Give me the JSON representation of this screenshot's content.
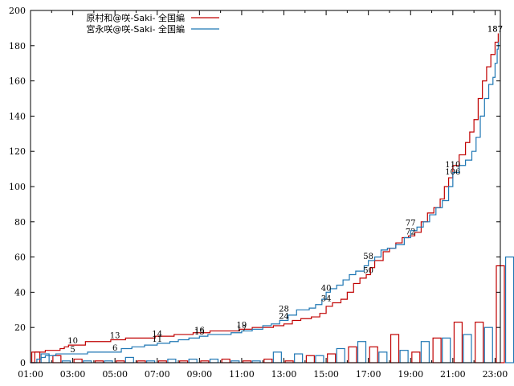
{
  "chart_data": {
    "type": "line+bar",
    "xlim_hours": [
      1,
      23.25
    ],
    "ylim": [
      0,
      200
    ],
    "x_ticks": [
      "01:00",
      "03:00",
      "05:00",
      "07:00",
      "09:00",
      "11:00",
      "13:00",
      "15:00",
      "17:00",
      "19:00",
      "21:00",
      "23:00"
    ],
    "y_ticks": [
      "0",
      "20",
      "40",
      "60",
      "80",
      "100",
      "120",
      "140",
      "160",
      "180",
      "200"
    ],
    "legend_position": "top-left",
    "series": [
      {
        "name": "原村和@咲-Saki- 全国編",
        "color": "#c00000",
        "cumulative_points": [
          [
            1.0,
            0
          ],
          [
            1.2,
            6
          ],
          [
            1.6,
            6
          ],
          [
            1.7,
            7
          ],
          [
            2.4,
            8
          ],
          [
            2.6,
            9
          ],
          [
            2.8,
            10
          ],
          [
            3.5,
            10
          ],
          [
            3.6,
            12
          ],
          [
            4.5,
            12
          ],
          [
            4.8,
            13
          ],
          [
            5.5,
            14
          ],
          [
            6.8,
            14
          ],
          [
            6.9,
            15
          ],
          [
            7.6,
            15
          ],
          [
            7.8,
            16
          ],
          [
            8.5,
            16
          ],
          [
            8.7,
            17
          ],
          [
            9.3,
            17
          ],
          [
            9.5,
            18
          ],
          [
            10.5,
            18
          ],
          [
            10.9,
            19
          ],
          [
            11.4,
            19
          ],
          [
            11.5,
            20
          ],
          [
            12.3,
            20
          ],
          [
            12.5,
            21
          ],
          [
            13.0,
            22
          ],
          [
            13.4,
            24
          ],
          [
            13.8,
            25
          ],
          [
            14.3,
            26
          ],
          [
            14.7,
            28
          ],
          [
            15.0,
            32
          ],
          [
            15.3,
            34
          ],
          [
            15.7,
            36
          ],
          [
            16.0,
            40
          ],
          [
            16.3,
            45
          ],
          [
            16.6,
            48
          ],
          [
            16.9,
            50
          ],
          [
            17.1,
            54
          ],
          [
            17.3,
            58
          ],
          [
            17.7,
            63
          ],
          [
            18.0,
            65
          ],
          [
            18.3,
            68
          ],
          [
            18.6,
            71
          ],
          [
            18.9,
            72
          ],
          [
            19.2,
            74
          ],
          [
            19.5,
            80
          ],
          [
            19.8,
            85
          ],
          [
            20.1,
            88
          ],
          [
            20.4,
            93
          ],
          [
            20.6,
            100
          ],
          [
            20.8,
            105
          ],
          [
            21.0,
            112
          ],
          [
            21.3,
            118
          ],
          [
            21.6,
            125
          ],
          [
            21.8,
            131
          ],
          [
            22.0,
            138
          ],
          [
            22.2,
            150
          ],
          [
            22.4,
            160
          ],
          [
            22.6,
            168
          ],
          [
            22.8,
            175
          ],
          [
            23.0,
            182
          ],
          [
            23.15,
            187
          ]
        ],
        "hourly_counts": [
          6,
          4,
          2,
          1,
          1,
          1,
          1,
          1,
          1,
          2,
          1,
          2,
          1,
          4,
          5,
          9,
          9,
          16,
          6,
          14,
          23,
          23,
          55
        ]
      },
      {
        "name": "宮永咲@咲-Saki- 全国編",
        "color": "#1f77b4",
        "cumulative_points": [
          [
            1.0,
            0
          ],
          [
            1.3,
            2
          ],
          [
            1.5,
            3
          ],
          [
            1.7,
            4
          ],
          [
            2.2,
            5
          ],
          [
            3.5,
            5
          ],
          [
            3.7,
            6
          ],
          [
            4.5,
            6
          ],
          [
            5.0,
            6
          ],
          [
            5.3,
            8
          ],
          [
            5.8,
            9
          ],
          [
            6.4,
            10
          ],
          [
            7.0,
            11
          ],
          [
            7.6,
            12
          ],
          [
            8.0,
            13
          ],
          [
            8.5,
            14
          ],
          [
            9.0,
            15
          ],
          [
            9.4,
            16
          ],
          [
            10.0,
            16
          ],
          [
            10.5,
            17
          ],
          [
            11.0,
            18
          ],
          [
            11.5,
            19
          ],
          [
            12.0,
            21
          ],
          [
            12.4,
            22
          ],
          [
            12.8,
            24
          ],
          [
            13.2,
            27
          ],
          [
            13.6,
            30
          ],
          [
            14.2,
            31
          ],
          [
            14.5,
            33
          ],
          [
            14.8,
            36
          ],
          [
            15.0,
            40
          ],
          [
            15.2,
            42
          ],
          [
            15.5,
            44
          ],
          [
            15.8,
            47
          ],
          [
            16.1,
            50
          ],
          [
            16.4,
            52
          ],
          [
            16.8,
            55
          ],
          [
            17.0,
            58
          ],
          [
            17.3,
            60
          ],
          [
            17.6,
            64
          ],
          [
            17.9,
            65
          ],
          [
            18.3,
            67
          ],
          [
            18.7,
            71
          ],
          [
            19.0,
            75
          ],
          [
            19.3,
            77
          ],
          [
            19.6,
            80
          ],
          [
            19.9,
            84
          ],
          [
            20.2,
            88
          ],
          [
            20.5,
            92
          ],
          [
            20.8,
            100
          ],
          [
            21.0,
            108
          ],
          [
            21.3,
            112
          ],
          [
            21.6,
            115
          ],
          [
            21.9,
            120
          ],
          [
            22.1,
            128
          ],
          [
            22.3,
            140
          ],
          [
            22.5,
            150
          ],
          [
            22.7,
            158
          ],
          [
            22.9,
            162
          ],
          [
            23.0,
            170
          ],
          [
            23.1,
            178
          ],
          [
            23.15,
            182
          ]
        ],
        "hourly_counts": [
          5,
          1,
          1,
          1,
          3,
          1,
          2,
          2,
          2,
          1,
          1,
          6,
          5,
          4,
          8,
          12,
          6,
          7,
          12,
          14,
          16,
          20,
          60
        ]
      }
    ],
    "annotations": [
      {
        "x": 3.0,
        "y": 10,
        "text": "10"
      },
      {
        "x": 3.0,
        "y": 5,
        "text": "5"
      },
      {
        "x": 5.0,
        "y": 13,
        "text": "13"
      },
      {
        "x": 5.0,
        "y": 6,
        "text": "6"
      },
      {
        "x": 7.0,
        "y": 14,
        "text": "14"
      },
      {
        "x": 7.0,
        "y": 11,
        "text": "11"
      },
      {
        "x": 9.0,
        "y": 16,
        "text": "16"
      },
      {
        "x": 9.0,
        "y": 15,
        "text": "15"
      },
      {
        "x": 11.0,
        "y": 19,
        "text": "19"
      },
      {
        "x": 11.0,
        "y": 17,
        "text": "17"
      },
      {
        "x": 13.0,
        "y": 28,
        "text": "28"
      },
      {
        "x": 13.0,
        "y": 24,
        "text": "24"
      },
      {
        "x": 15.0,
        "y": 40,
        "text": "40"
      },
      {
        "x": 15.0,
        "y": 34,
        "text": "34"
      },
      {
        "x": 17.0,
        "y": 58,
        "text": "58"
      },
      {
        "x": 17.0,
        "y": 50,
        "text": "50"
      },
      {
        "x": 19.0,
        "y": 77,
        "text": "77"
      },
      {
        "x": 19.0,
        "y": 72,
        "text": "72"
      },
      {
        "x": 21.0,
        "y": 110,
        "text": "110"
      },
      {
        "x": 21.0,
        "y": 106,
        "text": "106"
      },
      {
        "x": 23.0,
        "y": 187,
        "text": "187"
      },
      {
        "x": 23.0,
        "y": 187,
        "text": "187"
      }
    ]
  }
}
